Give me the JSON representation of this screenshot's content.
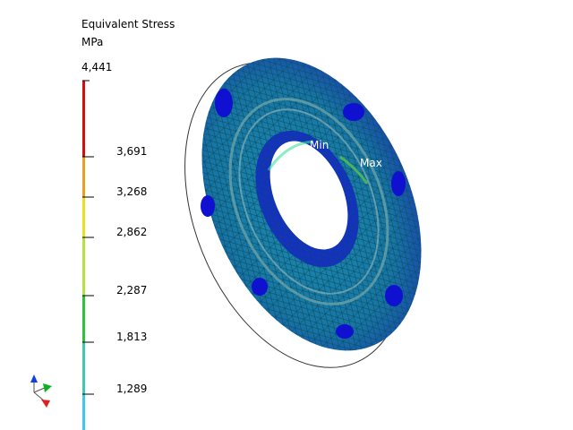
{
  "legend": {
    "title": "Equivalent Stress",
    "unit": "MPa",
    "labels": [
      "4,441",
      "3,691",
      "3,268",
      "2,862",
      "2,287",
      "1,813",
      "1,289"
    ]
  },
  "annotations": {
    "min": "Min",
    "max": "Max"
  }
}
